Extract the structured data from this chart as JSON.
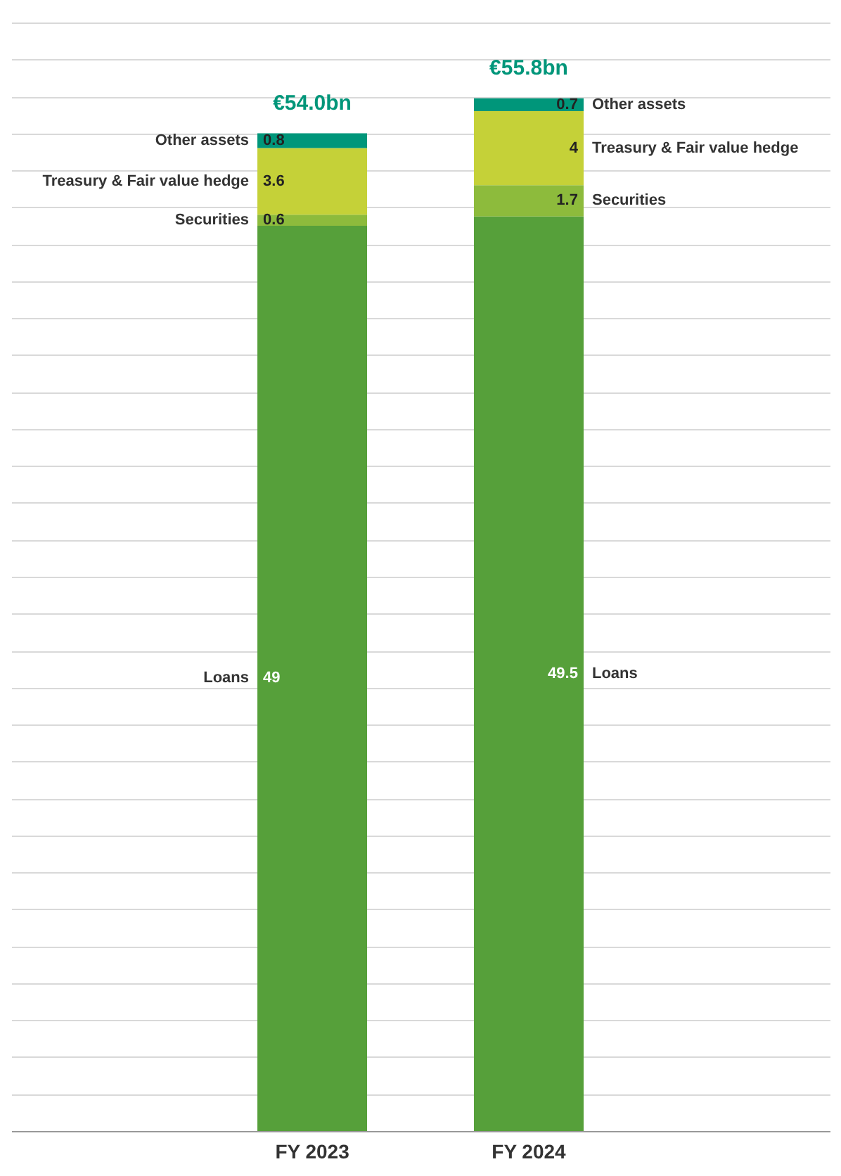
{
  "chart_data": {
    "type": "bar",
    "stacked": true,
    "categories": [
      "FY 2023",
      "FY 2024"
    ],
    "series": [
      {
        "name": "Loans",
        "color": "#56a03a",
        "values": [
          49,
          49.5
        ]
      },
      {
        "name": "Securities",
        "color": "#8dbb3c",
        "values": [
          0.6,
          1.7
        ]
      },
      {
        "name": "Treasury & Fair value hedge",
        "color": "#c5d138",
        "values": [
          3.6,
          4
        ]
      },
      {
        "name": "Other assets",
        "color": "#00967a",
        "values": [
          0.8,
          0.7
        ]
      }
    ],
    "totals": [
      "€54.0bn",
      "€55.8bn"
    ],
    "data_labels": true,
    "grid": "y",
    "tick_labels": "x",
    "legend": false
  }
}
